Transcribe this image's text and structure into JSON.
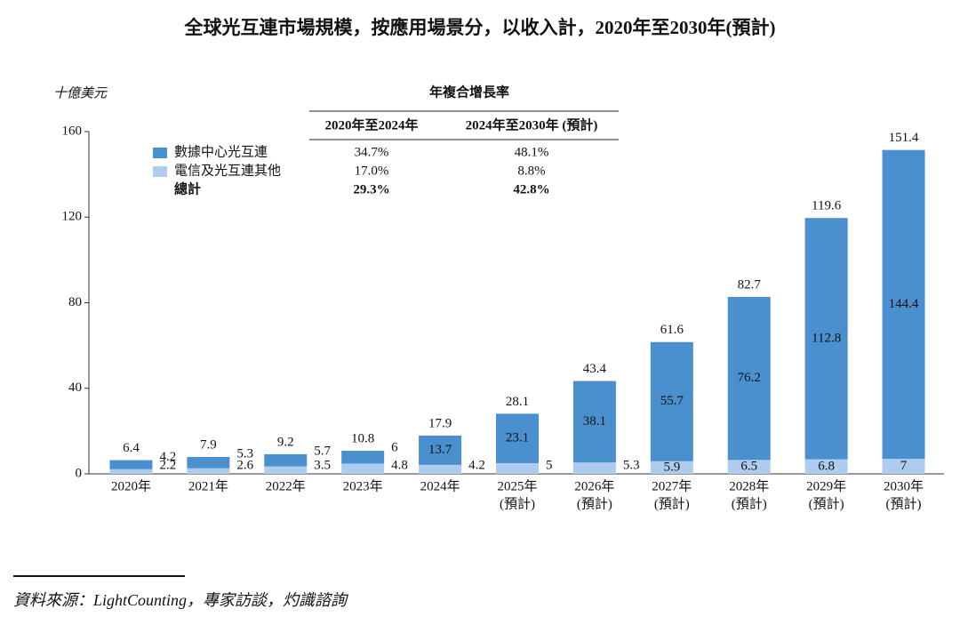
{
  "chart_data": {
    "type": "stacked_bar",
    "title": "全球光互連市場規模，按應用場景分，以收入計，2020年至2030年(預計)",
    "y_unit": "十億美元",
    "categories": [
      "2020年",
      "2021年",
      "2022年",
      "2023年",
      "2024年",
      "2025年",
      "2026年",
      "2027年",
      "2028年",
      "2029年",
      "2030年"
    ],
    "category_notes": [
      null,
      null,
      null,
      null,
      null,
      "(預計)",
      "(預計)",
      "(預計)",
      "(預計)",
      "(預計)",
      "(預計)"
    ],
    "series": [
      {
        "name": "電信及光互連其他",
        "color": "#aecdee",
        "values": [
          2.2,
          2.6,
          3.5,
          4.8,
          4.2,
          5.0,
          5.3,
          5.9,
          6.5,
          6.8,
          7.0
        ],
        "cagr": [
          "17.0%",
          "8.8%"
        ]
      },
      {
        "name": "數據中心光互連",
        "color": "#4a8fce",
        "values": [
          4.2,
          5.3,
          5.7,
          6.0,
          13.7,
          23.1,
          38.1,
          55.7,
          76.2,
          112.8,
          144.4
        ],
        "cagr": [
          "34.7%",
          "48.1%"
        ]
      }
    ],
    "totals": [
      6.4,
      7.9,
      9.2,
      10.8,
      17.9,
      28.1,
      43.4,
      61.6,
      82.7,
      119.6,
      151.4
    ],
    "cagr_title": "年複合增長率",
    "cagr_periods": [
      "2020年至2024年",
      "2024年至2030年 (預計)"
    ],
    "total_label": "總計",
    "total_cagr": [
      "29.3%",
      "42.8%"
    ],
    "ylim": [
      0,
      160
    ],
    "yticks": [
      0,
      40,
      80,
      120,
      160
    ],
    "source": "資料來源：LightCounting，專家訪談，灼識諮詢"
  }
}
